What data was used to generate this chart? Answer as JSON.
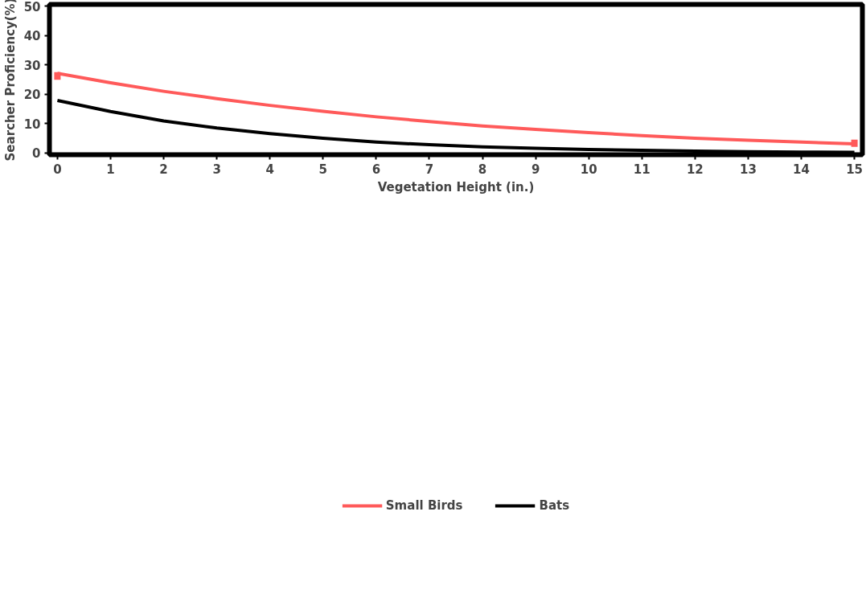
{
  "chart_data": {
    "type": "line",
    "xlabel": "Vegetation Height (in.)",
    "ylabel": "Searcher Proficiency(%)",
    "x": [
      0,
      1,
      2,
      3,
      4,
      5,
      6,
      7,
      8,
      9,
      10,
      11,
      12,
      13,
      14,
      15
    ],
    "series": [
      {
        "name": "Small Birds",
        "color": "#ff5a5a",
        "values": [
          27.1,
          23.9,
          21.0,
          18.5,
          16.2,
          14.2,
          12.3,
          10.7,
          9.2,
          8.0,
          6.9,
          5.9,
          5.0,
          4.3,
          3.7,
          3.1
        ],
        "errors": [
          [
            24.9,
            27.5
          ],
          null,
          null,
          null,
          null,
          null,
          null,
          null,
          null,
          null,
          null,
          null,
          null,
          null,
          null,
          [
            2.1,
            4.5
          ]
        ]
      },
      {
        "name": "Bats",
        "color": "#000000",
        "values": [
          17.9,
          14.1,
          10.9,
          8.5,
          6.6,
          5.0,
          3.7,
          2.8,
          2.1,
          1.6,
          1.2,
          0.9,
          0.6,
          0.4,
          0.3,
          0.2
        ]
      }
    ],
    "xlim": [
      -0.15,
      15.15
    ],
    "ylim": [
      -0.6,
      50.6
    ],
    "xticks": [
      0,
      1,
      2,
      3,
      4,
      5,
      6,
      7,
      8,
      9,
      10,
      11,
      12,
      13,
      14,
      15
    ],
    "yticks": [
      0,
      10,
      20,
      30,
      40,
      50
    ],
    "grid": false,
    "legend": "bottom",
    "marker": "none",
    "line_style": "solid"
  }
}
